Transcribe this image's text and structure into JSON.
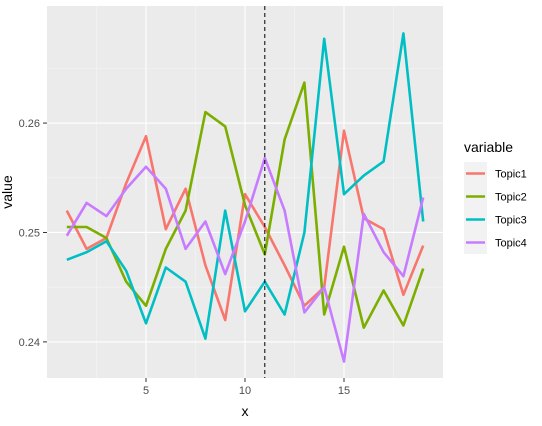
{
  "chart_data": {
    "type": "line",
    "xlabel": "x",
    "ylabel": "value",
    "xlim": [
      0.0,
      20.0
    ],
    "ylim": [
      0.2367,
      0.2707
    ],
    "x_ticks": [
      5,
      10,
      15
    ],
    "x_tick_labels": [
      "5",
      "10",
      "15"
    ],
    "y_ticks": [
      0.24,
      0.25,
      0.26
    ],
    "y_tick_labels": [
      "0.24",
      "0.25",
      "0.26"
    ],
    "vline": 11,
    "grid": true,
    "legend": {
      "title": "variable",
      "position": "right"
    },
    "x": [
      1,
      2,
      3,
      4,
      5,
      6,
      7,
      8,
      9,
      10,
      11,
      12,
      13,
      14,
      15,
      16,
      17,
      18,
      19
    ],
    "series": [
      {
        "name": "Topic1",
        "color": "#f8766d",
        "values": [
          0.252,
          0.2485,
          0.2495,
          0.2545,
          0.2588,
          0.2503,
          0.254,
          0.247,
          0.242,
          0.2535,
          0.2505,
          0.247,
          0.2433,
          0.245,
          0.2593,
          0.2513,
          0.2503,
          0.2443,
          0.2488
        ]
      },
      {
        "name": "Topic2",
        "color": "#7cae00",
        "values": [
          0.2505,
          0.2505,
          0.2495,
          0.2455,
          0.2433,
          0.2485,
          0.252,
          0.261,
          0.2597,
          0.2525,
          0.248,
          0.2585,
          0.2637,
          0.2425,
          0.2487,
          0.2413,
          0.2447,
          0.2415,
          0.2467
        ]
      },
      {
        "name": "Topic3",
        "color": "#00bfc4",
        "values": [
          0.2475,
          0.2482,
          0.2492,
          0.2465,
          0.2417,
          0.2468,
          0.2455,
          0.2403,
          0.252,
          0.2428,
          0.2455,
          0.2425,
          0.25,
          0.2677,
          0.2535,
          0.2552,
          0.2565,
          0.2682,
          0.251
        ]
      },
      {
        "name": "Topic4",
        "color": "#c77cff",
        "values": [
          0.2497,
          0.2527,
          0.2515,
          0.254,
          0.256,
          0.254,
          0.2485,
          0.251,
          0.2462,
          0.251,
          0.2568,
          0.252,
          0.2427,
          0.245,
          0.2382,
          0.2517,
          0.2482,
          0.246,
          0.2532
        ]
      }
    ]
  }
}
